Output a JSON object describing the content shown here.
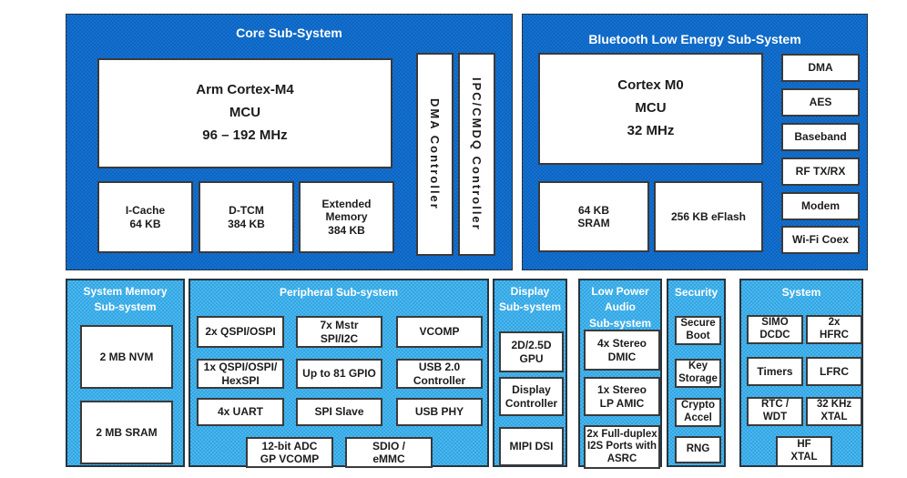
{
  "colors": {
    "dark_blue": "#1271D2",
    "light_blue": "#2EA7E6",
    "box_border": "#3A3A3A",
    "header_text": "#FFFFFF",
    "label_text": "#1C1C1C"
  },
  "diagram": {
    "core": {
      "title": "Core Sub-System",
      "mcu": "Arm Cortex-M4\nMCU\n96 – 192 MHz",
      "icache": "I-Cache\n64 KB",
      "dtcm": "D-TCM\n384 KB",
      "extended_memory": "Extended\nMemory\n384 KB",
      "dma_controller": "DMA Controller",
      "ipc_controller": "IPC/CMDQ Controller"
    },
    "ble": {
      "title": "Bluetooth Low Energy Sub-System",
      "mcu": "Cortex M0\nMCU\n32 MHz",
      "sram": "64 KB\nSRAM",
      "eflash": "256 KB eFlash",
      "blocks": [
        "DMA",
        "AES",
        "Baseband",
        "RF TX/RX",
        "Modem",
        "Wi-Fi Coex"
      ]
    },
    "memory": {
      "title": "System Memory\nSub-system",
      "nvm": "2 MB NVM",
      "sram": "2 MB SRAM"
    },
    "peripheral": {
      "title": "Peripheral Sub-system",
      "row1": [
        "2x QSPI/OSPI",
        "7x Mstr\nSPI/I2C",
        "VCOMP"
      ],
      "row2": [
        "1x QSPI/OSPI/\nHexSPI",
        "Up to 81 GPIO",
        "USB 2.0\nController"
      ],
      "row3": [
        "4x UART",
        "SPI Slave",
        "USB PHY"
      ],
      "row4": [
        "12-bit ADC\nGP VCOMP",
        "SDIO /\neMMC"
      ]
    },
    "display": {
      "title": "Display\nSub-system",
      "blocks": [
        "2D/2.5D\nGPU",
        "Display\nController",
        "MIPI DSI"
      ]
    },
    "audio": {
      "title": "Low Power\nAudio\nSub-system",
      "blocks": [
        "4x Stereo\nDMIC",
        "1x Stereo\nLP AMIC",
        "2x Full-duplex\nI2S Ports with\nASRC"
      ]
    },
    "security": {
      "title": "Security",
      "blocks": [
        "Secure\nBoot",
        "Key\nStorage",
        "Crypto\nAccel",
        "RNG"
      ]
    },
    "system": {
      "title": "System",
      "row1": [
        "SIMO\nDCDC",
        "2x\nHFRC"
      ],
      "row2": [
        "Timers",
        "LFRC"
      ],
      "row3": [
        "RTC /\nWDT",
        "32 KHz\nXTAL"
      ],
      "row4": [
        "HF\nXTAL"
      ]
    }
  }
}
